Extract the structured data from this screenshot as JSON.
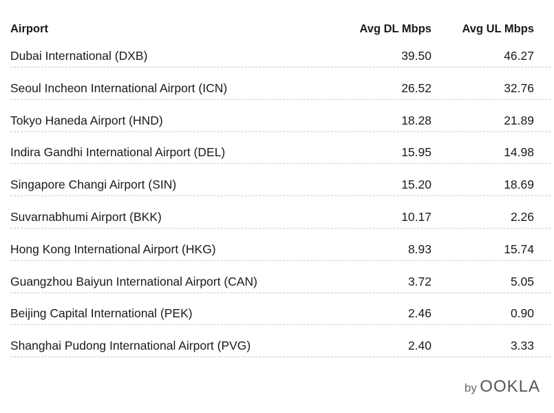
{
  "table": {
    "columns": [
      "Airport",
      "Avg DL Mbps",
      "Avg UL Mbps"
    ],
    "rows": [
      [
        "Dubai International (DXB)",
        "39.50",
        "46.27"
      ],
      [
        "Seoul Incheon International Airport (ICN)",
        "26.52",
        "32.76"
      ],
      [
        "Tokyo Haneda Airport (HND)",
        "18.28",
        "21.89"
      ],
      [
        "Indira Gandhi International Airport (DEL)",
        "15.95",
        "14.98"
      ],
      [
        "Singapore Changi Airport (SIN)",
        "15.20",
        "18.69"
      ],
      [
        "Suvarnabhumi Airport (BKK)",
        "10.17",
        "2.26"
      ],
      [
        "Hong Kong International Airport (HKG)",
        "8.93",
        "15.74"
      ],
      [
        "Guangzhou Baiyun International Airport (CAN)",
        "3.72",
        "5.05"
      ],
      [
        "Beijing Capital International (PEK)",
        "2.46",
        "0.90"
      ],
      [
        "Shanghai Pudong International Airport (PVG)",
        "2.40",
        "3.33"
      ]
    ]
  },
  "footer": {
    "by": "by",
    "brand": "OOKLA"
  }
}
